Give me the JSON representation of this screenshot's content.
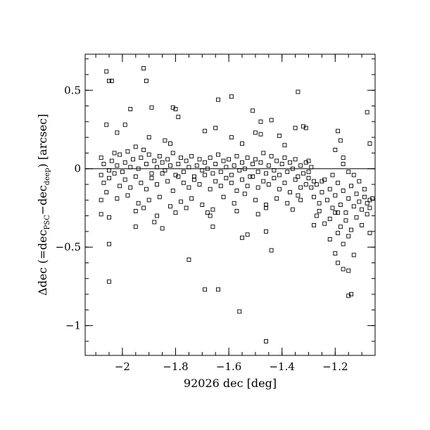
{
  "chart_data": {
    "type": "scatter",
    "title": "",
    "xlabel": "92026 dec [deg]",
    "ylabel": {
      "prefix": "Δdec (=dec",
      "sub1": "PSC",
      "mid": "−dec",
      "sub2": "deep",
      "suffix": ") [arcsec]"
    },
    "xlim": [
      -2.14,
      -1.05
    ],
    "ylim": [
      -1.19,
      0.73
    ],
    "grid": false,
    "zero_line": 0,
    "x_ticks": [
      {
        "value": -2.0,
        "label": "−2"
      },
      {
        "value": -1.8,
        "label": "−1.8"
      },
      {
        "value": -1.6,
        "label": "−1.6"
      },
      {
        "value": -1.4,
        "label": "−1.4"
      },
      {
        "value": -1.2,
        "label": "−1.2"
      }
    ],
    "y_ticks": [
      {
        "value": 0.5,
        "label": "0.5"
      },
      {
        "value": 0.0,
        "label": "0"
      },
      {
        "value": -0.5,
        "label": "−0.5"
      },
      {
        "value": -1.0,
        "label": "−1"
      }
    ],
    "x_minor_step": 0.05,
    "y_minor_step": 0.1,
    "marker": "open-square",
    "points": [
      [
        -2.06,
        0.62
      ],
      [
        -2.05,
        0.56
      ],
      [
        -2.04,
        0.56
      ],
      [
        -1.92,
        0.64
      ],
      [
        -1.91,
        0.56
      ],
      [
        -1.97,
        0.38
      ],
      [
        -1.89,
        0.39
      ],
      [
        -1.81,
        0.39
      ],
      [
        -1.8,
        0.38
      ],
      [
        -1.79,
        0.33
      ],
      [
        -1.64,
        0.44
      ],
      [
        -1.59,
        0.46
      ],
      [
        -1.51,
        0.37
      ],
      [
        -1.34,
        0.49
      ],
      [
        -1.48,
        0.3
      ],
      [
        -1.44,
        0.31
      ],
      [
        -1.35,
        0.26
      ],
      [
        -1.32,
        0.27
      ],
      [
        -1.31,
        0.26
      ],
      [
        -1.19,
        0.24
      ],
      [
        -1.08,
        0.36
      ],
      [
        -1.18,
        0.18
      ],
      [
        -1.07,
        0.16
      ],
      [
        -2.06,
        0.28
      ],
      [
        -2.02,
        0.23
      ],
      [
        -1.99,
        0.28
      ],
      [
        -1.9,
        0.2
      ],
      [
        -1.84,
        0.18
      ],
      [
        -1.82,
        0.16
      ],
      [
        -1.69,
        0.24
      ],
      [
        -1.65,
        0.26
      ],
      [
        -1.59,
        0.2
      ],
      [
        -1.55,
        0.16
      ],
      [
        -1.5,
        0.23
      ],
      [
        -1.48,
        0.22
      ],
      [
        -1.41,
        0.21
      ],
      [
        -1.39,
        0.15
      ],
      [
        -1.3,
        0.05
      ],
      [
        -1.2,
        0.12
      ],
      [
        -1.17,
        0.07
      ],
      [
        -2.08,
        0.07
      ],
      [
        -2.07,
        0.03
      ],
      [
        -2.05,
        -0.01
      ],
      [
        -2.04,
        0.05
      ],
      [
        -2.03,
        0.1
      ],
      [
        -2.02,
        0.02
      ],
      [
        -2.01,
        0.09
      ],
      [
        -2.0,
        -0.02
      ],
      [
        -1.99,
        0.04
      ],
      [
        -1.98,
        0.11
      ],
      [
        -1.97,
        0.01
      ],
      [
        -1.96,
        0.06
      ],
      [
        -1.95,
        0.14
      ],
      [
        -1.94,
        0.0
      ],
      [
        -1.93,
        0.07
      ],
      [
        -1.92,
        0.12
      ],
      [
        -1.91,
        0.03
      ],
      [
        -1.9,
        0.09
      ],
      [
        -1.89,
        -0.03
      ],
      [
        -1.88,
        0.05
      ],
      [
        -1.87,
        0.01
      ],
      [
        -1.86,
        0.08
      ],
      [
        -1.85,
        0.04
      ],
      [
        -1.84,
        -0.01
      ],
      [
        -1.83,
        0.06
      ],
      [
        -1.82,
        0.02
      ],
      [
        -1.81,
        0.1
      ],
      [
        -1.8,
        -0.04
      ],
      [
        -1.79,
        0.03
      ],
      [
        -1.78,
        0.07
      ],
      [
        -1.77,
        -0.02
      ],
      [
        -1.76,
        0.05
      ],
      [
        -1.75,
        0.01
      ],
      [
        -1.74,
        0.08
      ],
      [
        -1.73,
        -0.05
      ],
      [
        -1.72,
        0.02
      ],
      [
        -1.71,
        0.06
      ],
      [
        -1.7,
        -0.01
      ],
      [
        -1.69,
        0.04
      ],
      [
        -1.68,
        0.0
      ],
      [
        -1.67,
        0.07
      ],
      [
        -1.66,
        -0.03
      ],
      [
        -1.65,
        0.03
      ],
      [
        -1.64,
        0.09
      ],
      [
        -1.63,
        -0.02
      ],
      [
        -1.62,
        0.05
      ],
      [
        -1.61,
        0.01
      ],
      [
        -1.6,
        0.06
      ],
      [
        -1.59,
        -0.04
      ],
      [
        -1.58,
        0.02
      ],
      [
        -1.57,
        0.08
      ],
      [
        -1.56,
        -0.01
      ],
      [
        -1.55,
        0.04
      ],
      [
        -1.54,
        0.0
      ],
      [
        -1.53,
        0.07
      ],
      [
        -1.52,
        -0.05
      ],
      [
        -1.51,
        0.03
      ],
      [
        -1.5,
        0.06
      ],
      [
        -1.49,
        -0.02
      ],
      [
        -1.48,
        0.04
      ],
      [
        -1.47,
        0.1
      ],
      [
        -1.46,
        -0.03
      ],
      [
        -1.45,
        0.02
      ],
      [
        -1.44,
        0.08
      ],
      [
        -1.43,
        -0.01
      ],
      [
        -1.42,
        0.05
      ],
      [
        -1.41,
        -0.04
      ],
      [
        -1.4,
        0.03
      ],
      [
        -1.39,
        0.07
      ],
      [
        -1.38,
        -0.02
      ],
      [
        -1.37,
        0.04
      ],
      [
        -1.36,
        0.0
      ],
      [
        -1.35,
        0.06
      ],
      [
        -1.34,
        -0.05
      ],
      [
        -1.33,
        0.02
      ],
      [
        -1.32,
        -0.03
      ],
      [
        -1.31,
        0.04
      ],
      [
        -1.3,
        -0.06
      ],
      [
        -1.29,
        0.01
      ],
      [
        -1.28,
        -0.08
      ],
      [
        -2.08,
        -0.04
      ],
      [
        -2.07,
        -0.09
      ],
      [
        -2.05,
        -0.06
      ],
      [
        -2.03,
        -0.03
      ],
      [
        -2.01,
        -0.11
      ],
      [
        -1.99,
        -0.07
      ],
      [
        -1.97,
        -0.12
      ],
      [
        -1.95,
        -0.05
      ],
      [
        -1.93,
        -0.09
      ],
      [
        -1.91,
        -0.13
      ],
      [
        -1.89,
        -0.06
      ],
      [
        -1.87,
        -0.1
      ],
      [
        -1.85,
        -0.03
      ],
      [
        -1.83,
        -0.08
      ],
      [
        -1.81,
        -0.14
      ],
      [
        -1.79,
        -0.05
      ],
      [
        -1.77,
        -0.09
      ],
      [
        -1.75,
        -0.12
      ],
      [
        -1.73,
        -0.07
      ],
      [
        -1.71,
        -0.1
      ],
      [
        -1.69,
        -0.04
      ],
      [
        -1.67,
        -0.13
      ],
      [
        -1.65,
        -0.08
      ],
      [
        -1.63,
        -0.11
      ],
      [
        -1.61,
        -0.06
      ],
      [
        -1.59,
        -0.09
      ],
      [
        -1.57,
        -0.14
      ],
      [
        -1.55,
        -0.07
      ],
      [
        -1.53,
        -0.11
      ],
      [
        -1.51,
        -0.05
      ],
      [
        -1.49,
        -0.12
      ],
      [
        -1.47,
        -0.08
      ],
      [
        -1.45,
        -0.1
      ],
      [
        -1.43,
        -0.06
      ],
      [
        -1.41,
        -0.13
      ],
      [
        -1.39,
        -0.09
      ],
      [
        -1.37,
        -0.15
      ],
      [
        -1.35,
        -0.07
      ],
      [
        -1.33,
        -0.12
      ],
      [
        -1.31,
        -0.1
      ],
      [
        -2.08,
        -0.2
      ],
      [
        -2.06,
        -0.15
      ],
      [
        -2.02,
        -0.19
      ],
      [
        -1.98,
        -0.17
      ],
      [
        -1.94,
        -0.22
      ],
      [
        -1.9,
        -0.2
      ],
      [
        -1.86,
        -0.18
      ],
      [
        -1.82,
        -0.24
      ],
      [
        -1.78,
        -0.21
      ],
      [
        -1.74,
        -0.19
      ],
      [
        -1.7,
        -0.23
      ],
      [
        -1.66,
        -0.26
      ],
      [
        -1.62,
        -0.18
      ],
      [
        -1.58,
        -0.22
      ],
      [
        -1.54,
        -0.16
      ],
      [
        -1.5,
        -0.2
      ],
      [
        -1.46,
        -0.25
      ],
      [
        -1.42,
        -0.19
      ],
      [
        -1.38,
        -0.22
      ],
      [
        -1.34,
        -0.17
      ],
      [
        -2.08,
        -0.29
      ],
      [
        -2.05,
        -0.31
      ],
      [
        -1.95,
        -0.27
      ],
      [
        -1.92,
        -0.25
      ],
      [
        -1.87,
        -0.3
      ],
      [
        -1.8,
        -0.28
      ],
      [
        -1.76,
        -0.25
      ],
      [
        -1.68,
        -0.28
      ],
      [
        -1.67,
        -0.3
      ],
      [
        -1.57,
        -0.27
      ],
      [
        -1.49,
        -0.29
      ],
      [
        -1.46,
        -0.23
      ],
      [
        -1.95,
        -0.37
      ],
      [
        -1.88,
        -0.34
      ],
      [
        -1.85,
        -0.38
      ],
      [
        -1.66,
        -0.37
      ],
      [
        -1.55,
        -0.44
      ],
      [
        -1.53,
        -0.42
      ],
      [
        -1.46,
        -0.4
      ],
      [
        -1.44,
        -0.52
      ],
      [
        -2.05,
        -0.48
      ],
      [
        -2.05,
        -0.72
      ],
      [
        -1.75,
        -0.58
      ],
      [
        -1.69,
        -0.77
      ],
      [
        -1.64,
        -0.77
      ],
      [
        -1.56,
        -0.91
      ],
      [
        -1.46,
        -1.1
      ],
      [
        -1.29,
        -0.12
      ],
      [
        -1.28,
        -0.18
      ],
      [
        -1.27,
        -0.1
      ],
      [
        -1.26,
        -0.22
      ],
      [
        -1.25,
        -0.15
      ],
      [
        -1.24,
        -0.07
      ],
      [
        -1.23,
        -0.2
      ],
      [
        -1.22,
        -0.13
      ],
      [
        -1.21,
        -0.25
      ],
      [
        -1.2,
        -0.17
      ],
      [
        -1.19,
        -0.09
      ],
      [
        -1.18,
        -0.23
      ],
      [
        -1.17,
        -0.14
      ],
      [
        -1.16,
        -0.28
      ],
      [
        -1.15,
        -0.19
      ],
      [
        -1.14,
        -0.11
      ],
      [
        -1.13,
        -0.24
      ],
      [
        -1.12,
        -0.16
      ],
      [
        -1.11,
        -0.21
      ],
      [
        -1.1,
        -0.26
      ],
      [
        -1.09,
        -0.18
      ],
      [
        -1.08,
        -0.22
      ],
      [
        -1.07,
        -0.2
      ],
      [
        -1.07,
        -0.25
      ],
      [
        -1.06,
        -0.19
      ],
      [
        -1.09,
        -0.13
      ],
      [
        -1.11,
        -0.08
      ],
      [
        -1.13,
        -0.04
      ],
      [
        -1.15,
        -0.02
      ],
      [
        -1.17,
        0.03
      ],
      [
        -1.27,
        -0.3
      ],
      [
        -1.24,
        -0.35
      ],
      [
        -1.22,
        -0.32
      ],
      [
        -1.2,
        -0.28
      ],
      [
        -1.18,
        -0.37
      ],
      [
        -1.16,
        -0.33
      ],
      [
        -1.14,
        -0.39
      ],
      [
        -1.12,
        -0.31
      ],
      [
        -1.1,
        -0.36
      ],
      [
        -1.08,
        -0.29
      ],
      [
        -1.22,
        -0.45
      ],
      [
        -1.19,
        -0.41
      ],
      [
        -1.17,
        -0.48
      ],
      [
        -1.15,
        -0.43
      ],
      [
        -1.07,
        -0.41
      ],
      [
        -1.13,
        -0.55
      ],
      [
        -1.2,
        -0.54
      ],
      [
        -1.17,
        -0.64
      ],
      [
        -1.15,
        -0.65
      ],
      [
        -1.19,
        -0.6
      ],
      [
        -1.14,
        -0.8
      ],
      [
        -1.15,
        -0.81
      ],
      [
        -1.28,
        -0.36
      ],
      [
        -1.26,
        -0.27
      ],
      [
        -1.25,
        -0.08
      ],
      [
        -1.21,
        -0.04
      ],
      [
        -1.19,
        -0.28
      ],
      [
        -1.3,
        -0.02
      ],
      [
        -1.33,
        -0.2
      ],
      [
        -1.36,
        -0.26
      ]
    ]
  }
}
